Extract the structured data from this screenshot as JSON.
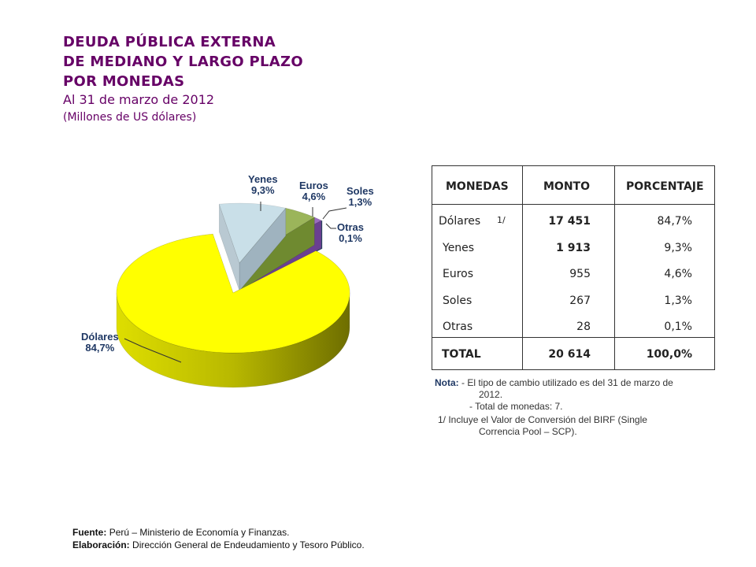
{
  "title": {
    "line1": "DEUDA PÚBLICA EXTERNA",
    "line2": "DE MEDIANO Y LARGO PLAZO",
    "line3": "POR  MONEDAS",
    "date": "Al 31 de marzo de 2012",
    "units": "(Millones de US dólares)"
  },
  "chart_data": {
    "type": "pie",
    "title": "Deuda pública externa por monedas",
    "categories": [
      "Yenes",
      "Euros",
      "Soles",
      "Otras",
      "Dólares"
    ],
    "values": [
      1913,
      955,
      267,
      28,
      17451
    ],
    "labels": [
      "9,3%",
      "4,6%",
      "1,3%",
      "0,1%",
      "84,7%"
    ],
    "colors": [
      "#c9dfe8",
      "#9bb55a",
      "#9a6cc0",
      "#2f6d8a",
      "#ffff00"
    ]
  },
  "table": {
    "headers": [
      "MONEDAS",
      "MONTO",
      "PORCENTAJE"
    ],
    "rows": [
      {
        "name": "Dólares",
        "note": "1/",
        "amount": "17 451",
        "pct": "84,7%"
      },
      {
        "name": "Yenes",
        "amount": "1 913",
        "pct": "9,3%"
      },
      {
        "name": "Euros",
        "amount": "955",
        "pct": "4,6%"
      },
      {
        "name": "Soles",
        "amount": "267",
        "pct": "1,3%"
      },
      {
        "name": "Otras",
        "amount": "28",
        "pct": "0,1%"
      }
    ],
    "total": {
      "name": "TOTAL",
      "amount": "20 614",
      "pct": "100,0%"
    }
  },
  "notes": {
    "label": "Nota:",
    "n1": "-  El tipo de cambio utilizado es del 31 de marzo de",
    "n1b": "2012.",
    "n2": "-  Total de monedas: 7.",
    "n3": "1/  Incluye el Valor de Conversión del BIRF (Single",
    "n3b": "Correncia Pool – SCP)."
  },
  "footer": {
    "source_label": "Fuente:",
    "source": "Perú – Ministerio de Economía y Finanzas.",
    "elab_label": "Elaboración:",
    "elab": "Dirección  General de Endeudamiento y Tesoro Público."
  }
}
